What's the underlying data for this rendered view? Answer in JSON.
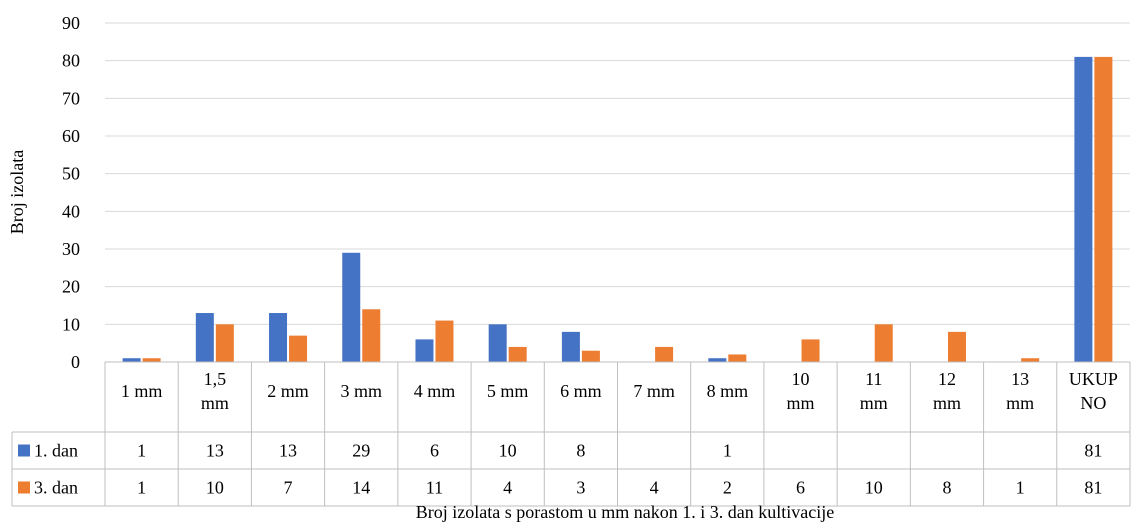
{
  "chart_data": {
    "type": "bar",
    "ylabel": "Broj izolata",
    "xlabel": "Broj izolata s porastom u mm nakon 1. i 3. dan kultivacije",
    "ylim": [
      0,
      90
    ],
    "yticks": [
      0,
      10,
      20,
      30,
      40,
      50,
      60,
      70,
      80,
      90
    ],
    "grid": true,
    "legend": "data-table",
    "categories": [
      [
        "1 mm"
      ],
      [
        "1,5",
        "mm"
      ],
      [
        "2 mm"
      ],
      [
        "3 mm"
      ],
      [
        "4 mm"
      ],
      [
        "5 mm"
      ],
      [
        "6 mm"
      ],
      [
        "7 mm"
      ],
      [
        "8 mm"
      ],
      [
        "10",
        "mm"
      ],
      [
        "11",
        "mm"
      ],
      [
        "12",
        "mm"
      ],
      [
        "13",
        "mm"
      ],
      [
        "UKUP",
        "NO"
      ]
    ],
    "series": [
      {
        "name": "1. dan",
        "color": "#4472C4",
        "values": [
          1,
          13,
          13,
          29,
          6,
          10,
          8,
          null,
          1,
          null,
          null,
          null,
          null,
          81
        ]
      },
      {
        "name": "3. dan",
        "color": "#ED7D31",
        "values": [
          1,
          10,
          7,
          14,
          11,
          4,
          3,
          4,
          2,
          6,
          10,
          8,
          1,
          81
        ]
      }
    ]
  }
}
